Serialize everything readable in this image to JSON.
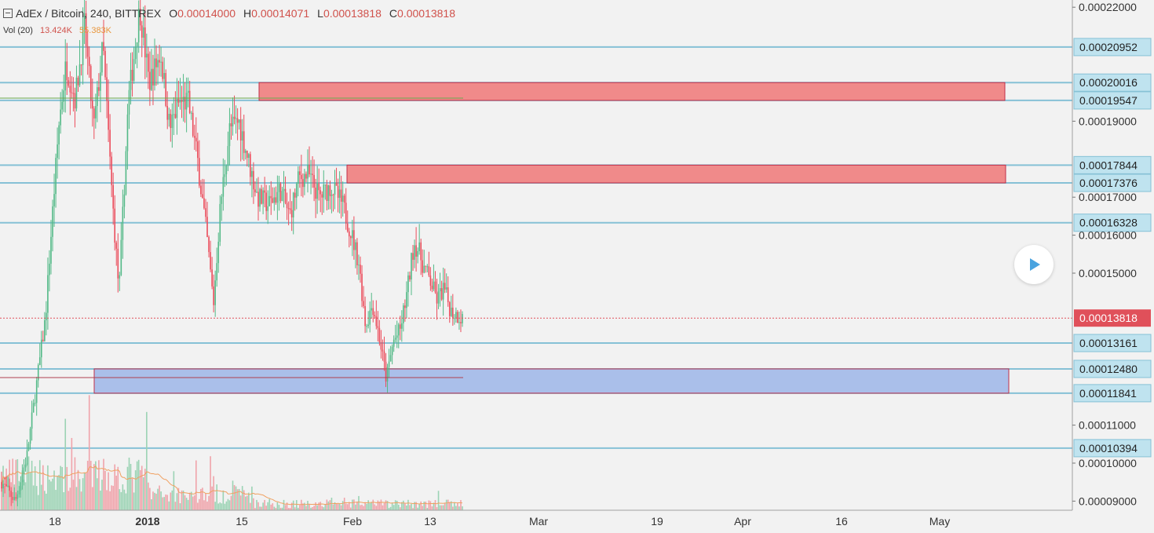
{
  "header": {
    "symbol": "AdEx / Bitcoin, 240, BITTREX",
    "open_label": "O",
    "open": "0.00014000",
    "high_label": "H",
    "high": "0.00014071",
    "low_label": "L",
    "low": "0.00013818",
    "close_label": "C",
    "close": "0.00013818",
    "vol_label": "Vol (20)",
    "vol": "13.424K",
    "vol_ma": "55.383K"
  },
  "colors": {
    "background": "#f2f2f2",
    "up": "#53b987",
    "down": "#eb4d5c",
    "level_line": "#86c1d6",
    "resistance_zone": "#f08a8a",
    "support_zone": "#aabfea",
    "current_price": "#e0505a",
    "volume_ma": "#f0a060"
  },
  "chart_data": {
    "type": "candlestick",
    "symbol": "AdEx / Bitcoin",
    "interval": "240",
    "exchange": "BITTREX",
    "y_axis": {
      "ticks": [
        "0.00022000",
        "0.00019000",
        "0.00017000",
        "0.00016000",
        "0.00015000",
        "0.00011000",
        "0.00010000",
        "0.00009000"
      ],
      "range": [
        8.76e-05,
        0.0002219
      ]
    },
    "x_axis": {
      "ticks": [
        "18",
        "2018",
        "15",
        "Feb",
        "13",
        "Mar",
        "19",
        "Apr",
        "16",
        "May"
      ]
    },
    "horizontal_levels": [
      {
        "value": "0.00020952",
        "color": "#86c1d6"
      },
      {
        "value": "0.00020016",
        "color": "#86c1d6"
      },
      {
        "value": "0.00019547",
        "color": "#86c1d6"
      },
      {
        "value": "0.00017844",
        "color": "#86c1d6"
      },
      {
        "value": "0.00017376",
        "color": "#86c1d6"
      },
      {
        "value": "0.00016328",
        "color": "#86c1d6"
      },
      {
        "value": "0.00013161",
        "color": "#86c1d6"
      },
      {
        "value": "0.00012480",
        "color": "#86c1d6"
      },
      {
        "value": "0.00011841",
        "color": "#86c1d6"
      },
      {
        "value": "0.00010394",
        "color": "#86c1d6"
      }
    ],
    "zones": [
      {
        "kind": "resistance",
        "top": 0.00020016,
        "bottom": 0.00019547,
        "color": "#f08a8a"
      },
      {
        "kind": "resistance",
        "top": 0.00017844,
        "bottom": 0.00017376,
        "color": "#f08a8a"
      },
      {
        "kind": "support",
        "top": 0.0001248,
        "bottom": 0.00011841,
        "color": "#aabfea"
      }
    ],
    "current_price": "0.00013818",
    "price_path": [
      {
        "t": 0.0,
        "p": 9.5e-05
      },
      {
        "t": 0.03,
        "p": 9e-05
      },
      {
        "t": 0.055,
        "p": 0.000102
      },
      {
        "t": 0.075,
        "p": 0.00012
      },
      {
        "t": 0.095,
        "p": 0.000138
      },
      {
        "t": 0.11,
        "p": 0.000165
      },
      {
        "t": 0.125,
        "p": 0.00019
      },
      {
        "t": 0.14,
        "p": 0.000205
      },
      {
        "t": 0.16,
        "p": 0.000196
      },
      {
        "t": 0.18,
        "p": 0.000215
      },
      {
        "t": 0.2,
        "p": 0.000188
      },
      {
        "t": 0.22,
        "p": 0.00021
      },
      {
        "t": 0.24,
        "p": 0.00017
      },
      {
        "t": 0.255,
        "p": 0.000145
      },
      {
        "t": 0.275,
        "p": 0.000195
      },
      {
        "t": 0.3,
        "p": 0.00022
      },
      {
        "t": 0.32,
        "p": 0.0002
      },
      {
        "t": 0.345,
        "p": 0.000208
      },
      {
        "t": 0.365,
        "p": 0.000188
      },
      {
        "t": 0.385,
        "p": 0.000195
      },
      {
        "t": 0.405,
        "p": 0.000195
      },
      {
        "t": 0.425,
        "p": 0.00018
      },
      {
        "t": 0.445,
        "p": 0.00016
      },
      {
        "t": 0.46,
        "p": 0.000142
      },
      {
        "t": 0.475,
        "p": 0.000168
      },
      {
        "t": 0.495,
        "p": 0.000188
      },
      {
        "t": 0.515,
        "p": 0.00019
      },
      {
        "t": 0.535,
        "p": 0.00018
      },
      {
        "t": 0.555,
        "p": 0.00017
      },
      {
        "t": 0.58,
        "p": 0.000168
      },
      {
        "t": 0.605,
        "p": 0.000172
      },
      {
        "t": 0.625,
        "p": 0.000165
      },
      {
        "t": 0.645,
        "p": 0.000175
      },
      {
        "t": 0.665,
        "p": 0.000176
      },
      {
        "t": 0.69,
        "p": 0.00017
      },
      {
        "t": 0.715,
        "p": 0.000173
      },
      {
        "t": 0.74,
        "p": 0.000168
      },
      {
        "t": 0.76,
        "p": 0.00016
      },
      {
        "t": 0.775,
        "p": 0.000153
      },
      {
        "t": 0.79,
        "p": 0.000136
      },
      {
        "t": 0.805,
        "p": 0.000142
      },
      {
        "t": 0.82,
        "p": 0.000133
      },
      {
        "t": 0.835,
        "p": 0.000122
      },
      {
        "t": 0.85,
        "p": 0.000132
      },
      {
        "t": 0.865,
        "p": 0.000135
      },
      {
        "t": 0.88,
        "p": 0.000145
      },
      {
        "t": 0.895,
        "p": 0.000158
      },
      {
        "t": 0.905,
        "p": 0.000156
      },
      {
        "t": 0.915,
        "p": 0.000152
      },
      {
        "t": 0.93,
        "p": 0.000148
      },
      {
        "t": 0.945,
        "p": 0.000143
      },
      {
        "t": 0.96,
        "p": 0.000146
      },
      {
        "t": 0.975,
        "p": 0.00014
      },
      {
        "t": 1.0,
        "p": 0.0001382
      }
    ]
  }
}
